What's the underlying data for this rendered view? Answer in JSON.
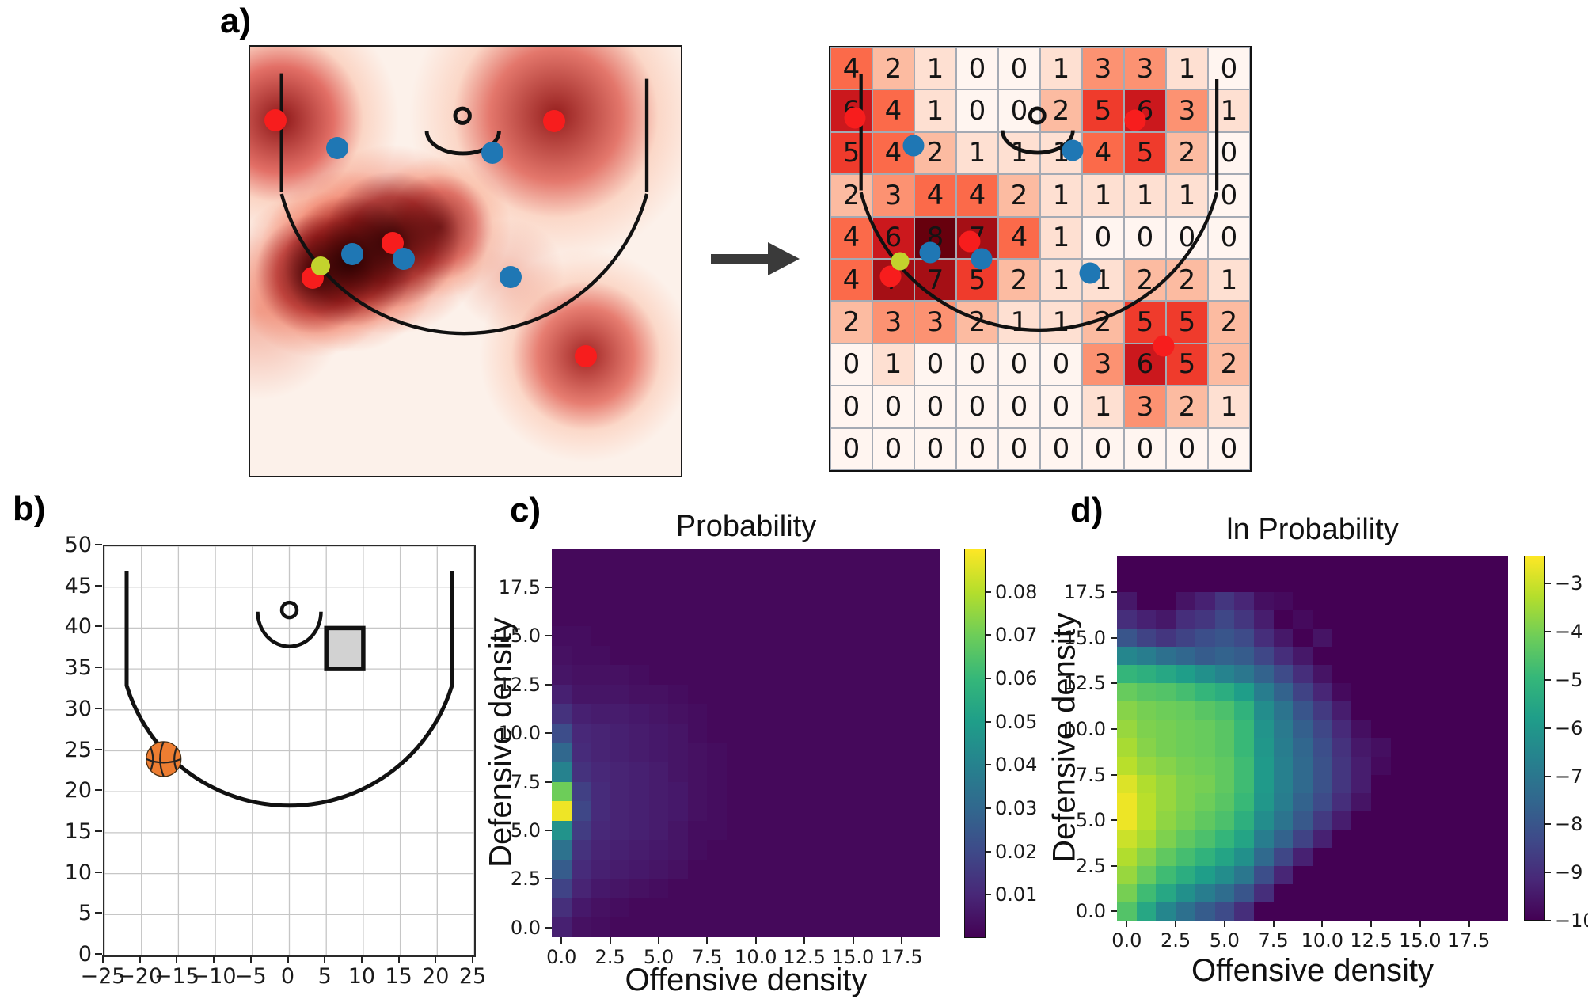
{
  "panels": {
    "a": {
      "label": "a)"
    },
    "b": {
      "label": "b)"
    },
    "c": {
      "label": "c)"
    },
    "d": {
      "label": "d)"
    }
  },
  "colors": {
    "offense": "#f71d1d",
    "defense": "#1f77b4",
    "ball_marker": "#c3d32d",
    "court_line": "#111111",
    "arrow": "#3a3a3a",
    "square_fill": "#d2d2d2",
    "basketball": "#ed7d31",
    "kde_base": "#fcf1ea"
  },
  "panel_a": {
    "kde_players": {
      "offense": [
        [
          5.8,
          17.2
        ],
        [
          70.6,
          17.4
        ],
        [
          33.0,
          45.8
        ],
        [
          14.6,
          53.8
        ],
        [
          77.9,
          72.2
        ]
      ],
      "defense": [
        [
          20.3,
          23.6
        ],
        [
          56.2,
          24.7
        ],
        [
          23.7,
          48.3
        ],
        [
          35.6,
          49.5
        ],
        [
          60.4,
          53.6
        ]
      ],
      "ball": [
        16.4,
        51.1
      ]
    },
    "grid_players": {
      "offense": [
        [
          5.8,
          16.7
        ],
        [
          72.6,
          17.2
        ],
        [
          33.2,
          45.9
        ],
        [
          14.3,
          54.1
        ],
        [
          79.4,
          70.6
        ]
      ],
      "defense": [
        [
          19.8,
          23.2
        ],
        [
          57.7,
          24.3
        ],
        [
          23.8,
          48.5
        ],
        [
          36.0,
          50.0
        ],
        [
          61.9,
          53.4
        ]
      ],
      "ball": [
        16.6,
        50.6
      ]
    }
  },
  "chart_data": [
    {
      "id": "a-count-grid",
      "type": "heatmap",
      "cmap": "Reds",
      "vmin": 0,
      "vmax": 8,
      "rows": 10,
      "cols": 10,
      "values": [
        [
          4,
          2,
          1,
          0,
          0,
          1,
          3,
          3,
          1,
          0
        ],
        [
          6,
          4,
          1,
          0,
          0,
          2,
          5,
          6,
          3,
          1
        ],
        [
          5,
          4,
          2,
          1,
          1,
          1,
          4,
          5,
          2,
          0
        ],
        [
          2,
          3,
          4,
          4,
          2,
          1,
          1,
          1,
          1,
          0
        ],
        [
          4,
          6,
          8,
          7,
          4,
          1,
          0,
          0,
          0,
          0
        ],
        [
          4,
          7,
          7,
          5,
          2,
          1,
          1,
          2,
          2,
          1
        ],
        [
          2,
          3,
          3,
          2,
          1,
          1,
          2,
          5,
          5,
          2
        ],
        [
          0,
          1,
          0,
          0,
          0,
          0,
          3,
          6,
          5,
          2
        ],
        [
          0,
          0,
          0,
          0,
          0,
          0,
          1,
          3,
          2,
          1
        ],
        [
          0,
          0,
          0,
          0,
          0,
          0,
          0,
          0,
          0,
          0
        ]
      ]
    },
    {
      "id": "b-court",
      "type": "diagram",
      "xlim": [
        -25,
        25
      ],
      "ylim": [
        0,
        50
      ],
      "grid": "on",
      "x_ticks": [
        "−25",
        "−20",
        "−15",
        "−10",
        "−5",
        "0",
        "5",
        "10",
        "15",
        "20",
        "25"
      ],
      "y_ticks": [
        "0",
        "5",
        "10",
        "15",
        "20",
        "25",
        "30",
        "35",
        "40",
        "45",
        "50"
      ],
      "square_x": [
        5,
        10
      ],
      "square_y": [
        35,
        40
      ],
      "ball": {
        "x": -17,
        "y": 24,
        "r": 2.3
      }
    },
    {
      "id": "c-probability",
      "type": "heatmap",
      "cmap": "viridis",
      "title": "Probability",
      "xlabel": "Offensive density",
      "ylabel": "Defensive density",
      "xlim": [
        0,
        20
      ],
      "ylim": [
        0,
        20
      ],
      "x_ticks": [
        "0.0",
        "2.5",
        "5.0",
        "7.5",
        "10.0",
        "12.5",
        "15.0",
        "17.5"
      ],
      "y_ticks": [
        "0.0",
        "2.5",
        "5.0",
        "7.5",
        "10.0",
        "12.5",
        "15.0",
        "17.5"
      ],
      "colorbar": {
        "tick_labels": [
          "0.08",
          "0.07",
          "0.06",
          "0.05",
          "0.04",
          "0.03",
          "0.02",
          "0.01"
        ],
        "tick_values": [
          0.08,
          0.07,
          0.06,
          0.05,
          0.04,
          0.03,
          0.02,
          0.01
        ],
        "vmin": 0,
        "vmax": 0.09
      },
      "values": [
        [
          0.002,
          0.002,
          0.002,
          0.002,
          0.002,
          0.002,
          0.002,
          0.002,
          0.002,
          0.002,
          0.002,
          0.002,
          0.002,
          0.002,
          0.002,
          0.002,
          0.002,
          0.002,
          0.002,
          0.002
        ],
        [
          0.002,
          0.002,
          0.002,
          0.002,
          0.002,
          0.002,
          0.002,
          0.002,
          0.002,
          0.002,
          0.002,
          0.002,
          0.002,
          0.002,
          0.002,
          0.002,
          0.002,
          0.002,
          0.002,
          0.002
        ],
        [
          0.002,
          0.002,
          0.002,
          0.002,
          0.002,
          0.002,
          0.002,
          0.002,
          0.002,
          0.002,
          0.002,
          0.002,
          0.002,
          0.002,
          0.002,
          0.002,
          0.002,
          0.002,
          0.002,
          0.002
        ],
        [
          0.002,
          0.002,
          0.002,
          0.002,
          0.002,
          0.002,
          0.002,
          0.002,
          0.002,
          0.002,
          0.002,
          0.002,
          0.002,
          0.002,
          0.002,
          0.002,
          0.002,
          0.002,
          0.002,
          0.002
        ],
        [
          0.003,
          0.003,
          0.002,
          0.002,
          0.002,
          0.002,
          0.002,
          0.002,
          0.002,
          0.002,
          0.002,
          0.002,
          0.002,
          0.002,
          0.002,
          0.002,
          0.002,
          0.002,
          0.002,
          0.002
        ],
        [
          0.004,
          0.003,
          0.003,
          0.002,
          0.002,
          0.002,
          0.002,
          0.002,
          0.002,
          0.002,
          0.002,
          0.002,
          0.002,
          0.002,
          0.002,
          0.002,
          0.002,
          0.002,
          0.002,
          0.002
        ],
        [
          0.005,
          0.004,
          0.004,
          0.004,
          0.003,
          0.002,
          0.002,
          0.002,
          0.002,
          0.002,
          0.002,
          0.002,
          0.002,
          0.002,
          0.002,
          0.002,
          0.002,
          0.002,
          0.002,
          0.002
        ],
        [
          0.008,
          0.005,
          0.005,
          0.005,
          0.004,
          0.004,
          0.003,
          0.002,
          0.002,
          0.002,
          0.002,
          0.002,
          0.002,
          0.002,
          0.002,
          0.002,
          0.002,
          0.002,
          0.002,
          0.002
        ],
        [
          0.013,
          0.008,
          0.007,
          0.007,
          0.006,
          0.005,
          0.004,
          0.003,
          0.002,
          0.002,
          0.002,
          0.002,
          0.002,
          0.002,
          0.002,
          0.002,
          0.002,
          0.002,
          0.002,
          0.002
        ],
        [
          0.021,
          0.01,
          0.009,
          0.008,
          0.007,
          0.006,
          0.005,
          0.003,
          0.002,
          0.002,
          0.002,
          0.002,
          0.002,
          0.002,
          0.002,
          0.002,
          0.002,
          0.002,
          0.002,
          0.002
        ],
        [
          0.03,
          0.011,
          0.009,
          0.008,
          0.007,
          0.006,
          0.005,
          0.004,
          0.003,
          0.002,
          0.002,
          0.002,
          0.002,
          0.002,
          0.002,
          0.002,
          0.002,
          0.002,
          0.002,
          0.002
        ],
        [
          0.04,
          0.013,
          0.01,
          0.009,
          0.008,
          0.007,
          0.005,
          0.004,
          0.003,
          0.002,
          0.002,
          0.002,
          0.002,
          0.002,
          0.002,
          0.002,
          0.002,
          0.002,
          0.002,
          0.002
        ],
        [
          0.07,
          0.017,
          0.011,
          0.009,
          0.008,
          0.007,
          0.006,
          0.004,
          0.003,
          0.002,
          0.002,
          0.002,
          0.002,
          0.002,
          0.002,
          0.002,
          0.002,
          0.002,
          0.002,
          0.002
        ],
        [
          0.088,
          0.019,
          0.011,
          0.009,
          0.008,
          0.007,
          0.006,
          0.004,
          0.003,
          0.002,
          0.002,
          0.002,
          0.002,
          0.002,
          0.002,
          0.002,
          0.002,
          0.002,
          0.002,
          0.002
        ],
        [
          0.046,
          0.016,
          0.01,
          0.009,
          0.008,
          0.007,
          0.005,
          0.003,
          0.003,
          0.002,
          0.002,
          0.002,
          0.002,
          0.002,
          0.002,
          0.002,
          0.002,
          0.002,
          0.002,
          0.002
        ],
        [
          0.034,
          0.013,
          0.009,
          0.008,
          0.007,
          0.006,
          0.005,
          0.003,
          0.002,
          0.002,
          0.002,
          0.002,
          0.002,
          0.002,
          0.002,
          0.002,
          0.002,
          0.002,
          0.002,
          0.002
        ],
        [
          0.026,
          0.011,
          0.008,
          0.007,
          0.006,
          0.005,
          0.004,
          0.002,
          0.002,
          0.002,
          0.002,
          0.002,
          0.002,
          0.002,
          0.002,
          0.002,
          0.002,
          0.002,
          0.002,
          0.002
        ],
        [
          0.018,
          0.009,
          0.006,
          0.005,
          0.004,
          0.003,
          0.002,
          0.002,
          0.002,
          0.002,
          0.002,
          0.002,
          0.002,
          0.002,
          0.002,
          0.002,
          0.002,
          0.002,
          0.002,
          0.002
        ],
        [
          0.012,
          0.006,
          0.004,
          0.003,
          0.002,
          0.002,
          0.002,
          0.002,
          0.002,
          0.002,
          0.002,
          0.002,
          0.002,
          0.002,
          0.002,
          0.002,
          0.002,
          0.002,
          0.002,
          0.002
        ],
        [
          0.008,
          0.004,
          0.003,
          0.002,
          0.002,
          0.002,
          0.002,
          0.002,
          0.002,
          0.002,
          0.002,
          0.002,
          0.002,
          0.002,
          0.002,
          0.002,
          0.002,
          0.002,
          0.002,
          0.002
        ]
      ]
    },
    {
      "id": "d-ln-probability",
      "type": "heatmap",
      "cmap": "viridis",
      "title": "ln Probability",
      "xlabel": "Offensive density",
      "ylabel": "Defensive density",
      "xlim": [
        0,
        20
      ],
      "ylim": [
        0,
        20
      ],
      "x_ticks": [
        "0.0",
        "2.5",
        "5.0",
        "7.5",
        "10.0",
        "12.5",
        "15.0",
        "17.5"
      ],
      "y_ticks": [
        "0.0",
        "2.5",
        "5.0",
        "7.5",
        "10.0",
        "12.5",
        "15.0",
        "17.5"
      ],
      "colorbar": {
        "tick_labels": [
          "−3",
          "−4",
          "−5",
          "−6",
          "−7",
          "−8",
          "−9",
          "−10"
        ],
        "tick_values": [
          -3,
          -4,
          -5,
          -6,
          -7,
          -8,
          -9,
          -10
        ],
        "vmin": -10,
        "vmax": -2.42
      },
      "values": [
        [
          -10,
          -10,
          -10,
          -10,
          -10,
          -10,
          -10,
          -10,
          -10,
          -10,
          -10,
          -10,
          -10,
          -10,
          -10,
          -10,
          -10,
          -10,
          -10,
          -10
        ],
        [
          -10,
          -10,
          -10,
          -10,
          -10,
          -10,
          -10,
          -10,
          -10,
          -10,
          -10,
          -10,
          -10,
          -10,
          -10,
          -10,
          -10,
          -10,
          -10,
          -10
        ],
        [
          -9.5,
          -10,
          -10,
          -9.6,
          -9.3,
          -8.8,
          -9.2,
          -9.7,
          -9.8,
          -10,
          -10,
          -10,
          -10,
          -10,
          -10,
          -10,
          -10,
          -10,
          -10,
          -10
        ],
        [
          -9.0,
          -9.3,
          -9.5,
          -9.0,
          -8.8,
          -8.4,
          -8.8,
          -9.4,
          -10,
          -9.8,
          -10,
          -10,
          -10,
          -10,
          -10,
          -10,
          -10,
          -10,
          -10,
          -10
        ],
        [
          -8.0,
          -8.5,
          -8.8,
          -8.5,
          -8.2,
          -8.0,
          -8.3,
          -9.0,
          -9.5,
          -10,
          -9.6,
          -10,
          -10,
          -10,
          -10,
          -10,
          -10,
          -10,
          -10,
          -10
        ],
        [
          -6.5,
          -6.8,
          -7.2,
          -7.5,
          -7.8,
          -7.6,
          -7.8,
          -8.4,
          -9.0,
          -9.5,
          -10,
          -10,
          -10,
          -10,
          -10,
          -10,
          -10,
          -10,
          -10,
          -10
        ],
        [
          -5.0,
          -5.2,
          -5.5,
          -5.8,
          -6.2,
          -6.6,
          -7.0,
          -7.6,
          -8.3,
          -9.0,
          -9.6,
          -10,
          -10,
          -10,
          -10,
          -10,
          -10,
          -10,
          -10,
          -10
        ],
        [
          -4.2,
          -4.4,
          -4.5,
          -4.7,
          -5.0,
          -5.3,
          -5.8,
          -6.8,
          -7.6,
          -8.5,
          -9.2,
          -9.8,
          -10,
          -10,
          -10,
          -10,
          -10,
          -10,
          -10,
          -10
        ],
        [
          -3.8,
          -4.0,
          -4.1,
          -4.2,
          -4.4,
          -4.6,
          -5.1,
          -6.3,
          -7.1,
          -8.0,
          -8.7,
          -9.4,
          -10,
          -10,
          -10,
          -10,
          -10,
          -10,
          -10,
          -10
        ],
        [
          -3.6,
          -3.9,
          -4.0,
          -4.1,
          -4.2,
          -4.4,
          -4.9,
          -6.1,
          -6.9,
          -7.7,
          -8.4,
          -9.1,
          -9.7,
          -10,
          -10,
          -10,
          -10,
          -10,
          -10,
          -10
        ],
        [
          -3.4,
          -3.8,
          -4.0,
          -4.1,
          -4.2,
          -4.4,
          -4.9,
          -6.0,
          -6.8,
          -7.5,
          -8.2,
          -8.9,
          -9.5,
          -9.7,
          -10,
          -10,
          -10,
          -10,
          -10,
          -10
        ],
        [
          -3.2,
          -3.6,
          -3.8,
          -4.0,
          -4.1,
          -4.3,
          -4.8,
          -5.9,
          -6.7,
          -7.4,
          -8.1,
          -8.8,
          -9.4,
          -9.8,
          -10,
          -10,
          -10,
          -10,
          -10,
          -10
        ],
        [
          -2.8,
          -3.3,
          -3.6,
          -3.9,
          -4.0,
          -4.3,
          -4.8,
          -5.9,
          -6.7,
          -7.4,
          -8.1,
          -8.8,
          -9.4,
          -10,
          -10,
          -10,
          -10,
          -10,
          -10,
          -10
        ],
        [
          -2.6,
          -3.2,
          -3.6,
          -3.9,
          -4.1,
          -4.4,
          -4.9,
          -6.0,
          -6.8,
          -7.6,
          -8.3,
          -9.0,
          -9.6,
          -10,
          -10,
          -10,
          -10,
          -10,
          -10,
          -10
        ],
        [
          -2.6,
          -3.2,
          -3.7,
          -4.0,
          -4.3,
          -4.6,
          -5.2,
          -6.3,
          -7.1,
          -7.9,
          -8.7,
          -9.4,
          -10,
          -10,
          -10,
          -10,
          -10,
          -10,
          -10,
          -10
        ],
        [
          -3.0,
          -3.4,
          -3.9,
          -4.3,
          -4.6,
          -5.0,
          -5.6,
          -6.8,
          -7.6,
          -8.5,
          -9.3,
          -10,
          -10,
          -10,
          -10,
          -10,
          -10,
          -10,
          -10,
          -10
        ],
        [
          -3.3,
          -3.8,
          -4.3,
          -4.7,
          -5.1,
          -5.6,
          -6.2,
          -7.4,
          -8.4,
          -9.3,
          -10,
          -10,
          -10,
          -10,
          -10,
          -10,
          -10,
          -10,
          -10,
          -10
        ],
        [
          -3.6,
          -4.2,
          -4.8,
          -5.3,
          -5.8,
          -6.3,
          -7.0,
          -8.2,
          -9.2,
          -10,
          -10,
          -10,
          -10,
          -10,
          -10,
          -10,
          -10,
          -10,
          -10,
          -10
        ],
        [
          -4.0,
          -4.8,
          -5.5,
          -6.2,
          -6.8,
          -7.3,
          -8.0,
          -9.0,
          -10,
          -10,
          -10,
          -10,
          -10,
          -10,
          -10,
          -10,
          -10,
          -10,
          -10,
          -10
        ],
        [
          -4.5,
          -5.5,
          -6.5,
          -7.2,
          -7.8,
          -8.3,
          -9.0,
          -10,
          -10,
          -10,
          -10,
          -10,
          -10,
          -10,
          -10,
          -10,
          -10,
          -10,
          -10,
          -10
        ]
      ]
    }
  ]
}
